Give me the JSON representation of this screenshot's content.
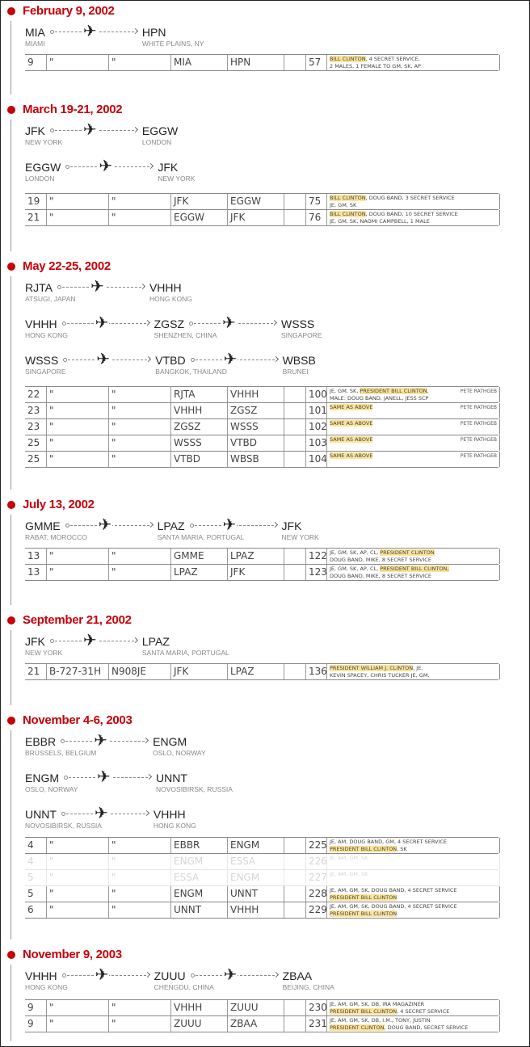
{
  "colors": {
    "date": "#c8000a",
    "highlight": "#fbe49a",
    "timeline": "#999999"
  },
  "icons": {
    "plane": "airplane-icon",
    "dot": "timeline-dot-icon"
  },
  "sections": [
    {
      "date": "February 9, 2002",
      "routes": [
        [
          {
            "code": "MIA",
            "city": "MIAMI"
          },
          {
            "code": "HPN",
            "city": "WHITE PLAINS, NY"
          }
        ]
      ],
      "log": [
        {
          "day": "9",
          "d1": "\"",
          "d2": "\"",
          "from": "MIA",
          "to": "HPN",
          "blank": "",
          "num": "57",
          "notes": [
            {
              "hl": "BILL CLINTON",
              "t": ", 4 SECRET SERVICE,"
            },
            {
              "hl": "",
              "t": "2 MALES, 1 FEMALE TO GM, SK, AP"
            }
          ]
        }
      ]
    },
    {
      "date": "March 19-21, 2002",
      "routes": [
        [
          {
            "code": "JFK",
            "city": "NEW YORK"
          },
          {
            "code": "EGGW",
            "city": "LONDON"
          }
        ],
        [
          {
            "code": "EGGW",
            "city": "LONDON"
          },
          {
            "code": "JFK",
            "city": "NEW YORK"
          }
        ]
      ],
      "log": [
        {
          "day": "19",
          "d1": "\"",
          "d2": "\"",
          "from": "JFK",
          "to": "EGGW",
          "blank": "",
          "num": "75",
          "notes": [
            {
              "hl": "BILL CLINTON",
              "t": ", DOUG BAND, 3 SECRET SERVICE"
            },
            {
              "hl": "",
              "t": "JE, GM, SK"
            }
          ]
        },
        {
          "day": "21",
          "d1": "\"",
          "d2": "\"",
          "from": "EGGW",
          "to": "JFK",
          "blank": "",
          "num": "76",
          "notes": [
            {
              "hl": "BILL CLINTON",
              "t": ", DOUG BAND, 10 SECRET SERVICE"
            },
            {
              "hl": "",
              "t": "JE, GM, SK, NAOMI CAMPBELL, 1 MALE"
            }
          ]
        }
      ]
    },
    {
      "date": "May 22-25, 2002",
      "routes": [
        [
          {
            "code": "RJTA",
            "city": "ATSUGI, JAPAN"
          },
          {
            "code": "VHHH",
            "city": "HONG KONG"
          }
        ],
        [
          {
            "code": "VHHH",
            "city": "HONG KONG"
          },
          {
            "code": "ZGSZ",
            "city": "SHENZHEN, CHINA"
          },
          {
            "code": "WSSS",
            "city": "SINGAPORE"
          }
        ],
        [
          {
            "code": "WSSS",
            "city": "SINGAPORE"
          },
          {
            "code": "VTBD",
            "city": "BANGKOK, THAILAND"
          },
          {
            "code": "WBSB",
            "city": "BRUNEI"
          }
        ]
      ],
      "log": [
        {
          "day": "22",
          "d1": "\"",
          "d2": "\"",
          "from": "RJTA",
          "to": "VHHH",
          "blank": "",
          "num": "100",
          "side": "PETE RATHGEB",
          "notes": [
            {
              "pre": "JE, GM, SK, ",
              "hl": "PRESIDENT BILL CLINTON",
              "t": ","
            },
            {
              "hl": "",
              "t": "MALE: DOUG BAND, JANELL, JESS SCP"
            }
          ]
        },
        {
          "day": "23",
          "d1": "\"",
          "d2": "\"",
          "from": "VHHH",
          "to": "ZGSZ",
          "blank": "",
          "num": "101",
          "side": "PETE RATHGEB",
          "notes": [
            {
              "hl": "SAME AS ABOVE",
              "t": ""
            }
          ]
        },
        {
          "day": "23",
          "d1": "\"",
          "d2": "\"",
          "from": "ZGSZ",
          "to": "WSSS",
          "blank": "",
          "num": "102",
          "side": "PETE RATHGEB",
          "notes": [
            {
              "hl": "SAME AS ABOVE",
              "t": ""
            }
          ]
        },
        {
          "day": "25",
          "d1": "\"",
          "d2": "\"",
          "from": "WSSS",
          "to": "VTBD",
          "blank": "",
          "num": "103",
          "side": "PETE RATHGEB",
          "notes": [
            {
              "hl": "SAME AS ABOVE",
              "t": ""
            }
          ]
        },
        {
          "day": "25",
          "d1": "\"",
          "d2": "\"",
          "from": "VTBD",
          "to": "WBSB",
          "blank": "",
          "num": "104",
          "side": "PETE RATHGEB",
          "notes": [
            {
              "hl": "SAME AS ABOVE",
              "t": ""
            }
          ]
        }
      ]
    },
    {
      "date": "July 13, 2002",
      "routes": [
        [
          {
            "code": "GMME",
            "city": "RABAT, MOROCCO"
          },
          {
            "code": "LPAZ",
            "city": "SANTA MARIA, PORTUGAL"
          },
          {
            "code": "JFK",
            "city": "NEW YORK"
          }
        ]
      ],
      "log": [
        {
          "day": "13",
          "d1": "\"",
          "d2": "\"",
          "from": "GMME",
          "to": "LPAZ",
          "blank": "",
          "num": "122",
          "notes": [
            {
              "pre": "JE, GM, SK, AP, CL, ",
              "hl": "PRESIDENT CLINTON",
              "t": ""
            },
            {
              "hl": "",
              "t": "DOUG BAND, MIKE, 8 SECRET SERVICE"
            }
          ]
        },
        {
          "day": "13",
          "d1": "\"",
          "d2": "\"",
          "from": "LPAZ",
          "to": "JFK",
          "blank": "",
          "num": "123",
          "notes": [
            {
              "pre": "JE, GM, SK, AP, CL, ",
              "hl": "PRESIDENT BILL CLINTON,",
              "t": ""
            },
            {
              "hl": "",
              "t": "DOUG BAND, MIKE, 8 SECRET SERVICE"
            }
          ]
        }
      ]
    },
    {
      "date": "September 21, 2002",
      "routes": [
        [
          {
            "code": "JFK",
            "city": "NEW YORK"
          },
          {
            "code": "LPAZ",
            "city": "SANTA MARIA, PORTUGAL"
          }
        ]
      ],
      "log": [
        {
          "day": "21",
          "d1": "B-727-31H",
          "d2": "N908JE",
          "from": "JFK",
          "to": "LPAZ",
          "blank": "",
          "num": "136",
          "notes": [
            {
              "hl": "PRESIDENT WILLIAM J. CLINTON",
              "t": ", JE,"
            },
            {
              "hl": "",
              "t": "KEVIN SPACEY, CHRIS TUCKER JE, GM,"
            }
          ]
        }
      ]
    },
    {
      "date": "November 4-6, 2003",
      "routes": [
        [
          {
            "code": "EBBR",
            "city": "BRUSSELS, BELGIUM"
          },
          {
            "code": "ENGM",
            "city": "OSLO, NORWAY"
          }
        ],
        [
          {
            "code": "ENGM",
            "city": "OSLO, NORWAY"
          },
          {
            "code": "UNNT",
            "city": "NOVOSIBIRSK, RUSSIA"
          }
        ],
        [
          {
            "code": "UNNT",
            "city": "NOVOSIBIRSK, RUSSIA"
          },
          {
            "code": "VHHH",
            "city": "HONG KONG"
          }
        ]
      ],
      "log": [
        {
          "day": "4",
          "d1": "\"",
          "d2": "\"",
          "from": "EBBR",
          "to": "ENGM",
          "blank": "",
          "num": "225",
          "notes": [
            {
              "hl": "",
              "t": "JE, AM, DOUG BAND, GM, 4 SECRET SERVICE"
            },
            {
              "hl": "PRESIDENT BILL CLINTON",
              "t": ", SK"
            }
          ]
        },
        {
          "day": "4",
          "d1": "\"",
          "d2": "\"",
          "from": "ENGM",
          "to": "ESSA",
          "blank": "",
          "num": "226",
          "faded": true,
          "notes": [
            {
              "hl": "",
              "t": "JE, AM, GM, SK"
            }
          ]
        },
        {
          "day": "5",
          "d1": "\"",
          "d2": "\"",
          "from": "ESSA",
          "to": "ENGM",
          "blank": "",
          "num": "227",
          "faded": true,
          "notes": [
            {
              "hl": "",
              "t": "JE, AM, GM, SK"
            }
          ]
        },
        {
          "day": "5",
          "d1": "\"",
          "d2": "\"",
          "from": "ENGM",
          "to": "UNNT",
          "blank": "",
          "num": "228",
          "notes": [
            {
              "hl": "",
              "t": "JE, AM, GM, SK, DOUG BAND, 4 SECRET SERVICE"
            },
            {
              "hl": "PRESIDENT BILL CLINTON",
              "t": ""
            }
          ]
        },
        {
          "day": "6",
          "d1": "\"",
          "d2": "\"",
          "from": "UNNT",
          "to": "VHHH",
          "blank": "",
          "num": "229",
          "notes": [
            {
              "hl": "",
              "t": "JE, AM, GM, SK, DOUG BAND, 4 SECRET SERVICE"
            },
            {
              "hl": "PRESIDENT BILL CLINTON",
              "t": ""
            }
          ]
        }
      ]
    },
    {
      "date": "November 9, 2003",
      "routes": [
        [
          {
            "code": "VHHH",
            "city": "HONG KONG"
          },
          {
            "code": "ZUUU",
            "city": "CHENGDU, CHINA"
          },
          {
            "code": "ZBAA",
            "city": "BEIJING, CHINA"
          }
        ]
      ],
      "log": [
        {
          "day": "9",
          "d1": "\"",
          "d2": "\"",
          "from": "VHHH",
          "to": "ZUUU",
          "blank": "",
          "num": "230",
          "notes": [
            {
              "hl": "",
              "t": "JE, AM, GM, SK, DB, IRA MAGAZINER"
            },
            {
              "hl": "PRESIDENT BILL CLINTON",
              "t": ", 4 SECRET SERVICE"
            }
          ]
        },
        {
          "day": "9",
          "d1": "\"",
          "d2": "\"",
          "from": "ZUUU",
          "to": "ZBAA",
          "blank": "",
          "num": "231",
          "notes": [
            {
              "hl": "",
              "t": "JE, AM, GM, SK, DB, I.M., TONY, JUSTIN"
            },
            {
              "hl": "PRESIDENT CLINTON",
              "t": ", DOUG BAND, SECRET SERVICE"
            }
          ]
        }
      ]
    }
  ]
}
